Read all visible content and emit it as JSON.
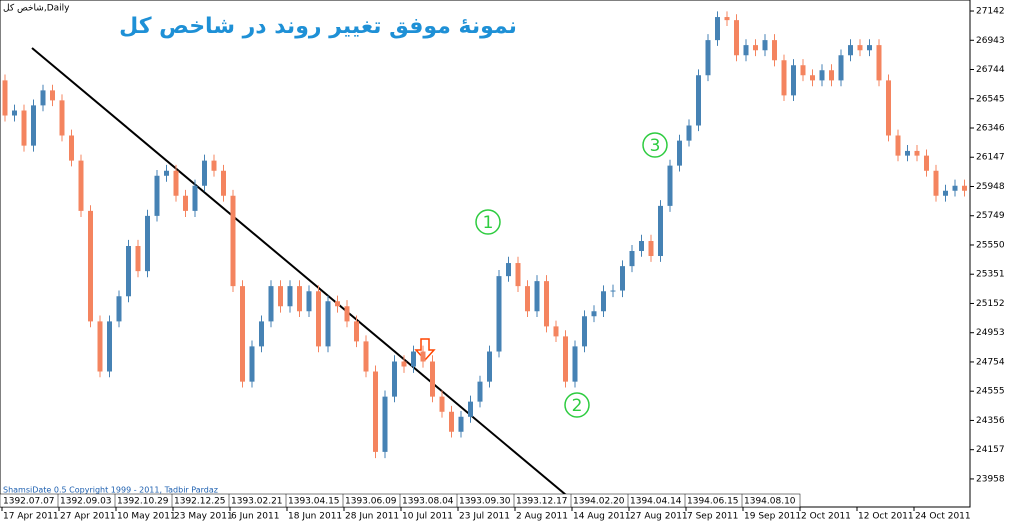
{
  "chart_data": {
    "type": "candlestick",
    "title": "نمونهٔ موفق تغییر روند در شاخص کل",
    "symbol_label": "شاخص کل,Daily",
    "footer": "ShamsiDate 0.5 Copyright 1999 - 2011, Tadbir Pardaz",
    "up_color": "#4682b4",
    "down_color": "#f4845f",
    "ylim": [
      23767,
      27217
    ],
    "yticks": [
      27142,
      26943,
      26744,
      26545,
      26346,
      26147,
      25948,
      25749,
      25550,
      25351,
      25152,
      24953,
      24754,
      24555,
      24356,
      24157,
      23958
    ],
    "categories": [
      "17 Apr 2011",
      null,
      null,
      null,
      null,
      null,
      "27 Apr 2011",
      null,
      null,
      null,
      null,
      null,
      "10 May 2011",
      null,
      null,
      null,
      null,
      null,
      "23 May 2011",
      null,
      null,
      null,
      null,
      null,
      "6 Jun 2011",
      null,
      null,
      null,
      null,
      null,
      "18 Jun 2011",
      null,
      null,
      null,
      null,
      null,
      "28 Jun 2011",
      null,
      null,
      null,
      null,
      null,
      "10 Jul 2011",
      null,
      null,
      null,
      null,
      null,
      "23 Jul 2011",
      null,
      null,
      null,
      null,
      null,
      "2 Aug 2011",
      null,
      null,
      null,
      null,
      null,
      "14 Aug 2011",
      null,
      null,
      null,
      null,
      null,
      "27 Aug 2011",
      null,
      null,
      null,
      null,
      null,
      "7 Sep 2011",
      null,
      null,
      null,
      null,
      null,
      "19 Sep 2011",
      null,
      null,
      null,
      null,
      null,
      "2 Oct 2011",
      null,
      null,
      null,
      null,
      null,
      "12 Oct 2011",
      null,
      null,
      null,
      null,
      null,
      "24 Oct 2011",
      null,
      null,
      null,
      null,
      null
    ],
    "shamsi_dates": [
      "1392.07.07",
      "1392.09.03",
      "1392.10.29",
      "1392.12.25",
      "1393.02.21",
      "1393.04.15",
      "1393.06.09",
      "1393.08.04",
      "1393.09.30",
      "1393.12.17",
      "1394.02.20",
      "1394.04.14",
      "1394.06.15",
      "1394.08.10"
    ],
    "open": [
      26670,
      26431,
      26465,
      26226,
      26500,
      26602,
      26534,
      26295,
      26124,
      25782,
      25030,
      24689,
      25030,
      25201,
      25543,
      25372,
      25748,
      26021,
      26055,
      25885,
      25782,
      25953,
      26124,
      26055,
      25885,
      25270,
      24620,
      24860,
      25030,
      25270,
      25133,
      25270,
      25099,
      25235,
      24860,
      25167,
      25133,
      25030,
      24894,
      24689,
      24142,
      24518,
      24757,
      24723,
      24825,
      24757,
      24518,
      24415,
      24279,
      24381,
      24484,
      24620,
      24825,
      25338,
      25427,
      25270,
      25099,
      25304,
      24996,
      24928,
      24620,
      24860,
      25065,
      25099,
      25235,
      25240,
      25406,
      25509,
      25577,
      25475,
      25816,
      26090,
      26260,
      26363,
      26705,
      26944,
      27101,
      27080,
      26841,
      26910,
      26875,
      26944,
      26807,
      26568,
      26773,
      26705,
      26670,
      26739,
      26670,
      26841,
      26910,
      26875,
      26910,
      26670,
      26295,
      26158,
      26190,
      26158,
      26055,
      25885,
      25919,
      25953
    ],
    "high": [
      26710,
      26505,
      26505,
      26540,
      26640,
      26640,
      26575,
      26335,
      26165,
      25820,
      25070,
      25070,
      25240,
      25585,
      25585,
      25790,
      26060,
      26095,
      26095,
      25925,
      25995,
      26165,
      26165,
      26095,
      25925,
      25310,
      24900,
      25070,
      25310,
      25310,
      25310,
      25310,
      25275,
      25275,
      25205,
      25205,
      25175,
      25070,
      24935,
      24730,
      24560,
      24800,
      24800,
      24865,
      24865,
      24800,
      24560,
      24455,
      24420,
      24525,
      24660,
      24865,
      25380,
      25470,
      25470,
      25310,
      25345,
      25345,
      25035,
      24970,
      24900,
      25105,
      25140,
      25275,
      25280,
      25445,
      25550,
      25620,
      25620,
      25855,
      26130,
      26300,
      26405,
      26745,
      26985,
      27140,
      27140,
      27120,
      26950,
      26950,
      26985,
      26985,
      26845,
      26815,
      26815,
      26745,
      26780,
      26780,
      26880,
      26950,
      26950,
      26950,
      26950,
      26710,
      26335,
      26230,
      26230,
      26200,
      26095,
      25960,
      25995,
      25995
    ],
    "low": [
      26390,
      26390,
      26185,
      26185,
      26460,
      26495,
      26255,
      26085,
      25740,
      24990,
      24650,
      24650,
      24990,
      25160,
      25330,
      25330,
      25710,
      25980,
      25845,
      25740,
      25740,
      25915,
      26015,
      25845,
      25230,
      24580,
      24580,
      24820,
      24990,
      25090,
      25090,
      25060,
      25060,
      24820,
      24820,
      25090,
      24990,
      24855,
      24650,
      24100,
      24100,
      24480,
      24680,
      24680,
      24715,
      24480,
      24375,
      24240,
      24240,
      24340,
      24445,
      24580,
      24785,
      25300,
      25230,
      25060,
      25060,
      24955,
      24890,
      24580,
      24580,
      24820,
      25025,
      25060,
      25195,
      25195,
      25365,
      25470,
      25435,
      25435,
      25775,
      26050,
      26220,
      26325,
      26665,
      26905,
      27040,
      26800,
      26800,
      26835,
      26835,
      26765,
      26530,
      26530,
      26665,
      26630,
      26630,
      26630,
      26630,
      26800,
      26835,
      26835,
      26630,
      26255,
      26120,
      26120,
      26120,
      26015,
      25845,
      25845,
      25880,
      25880
    ],
    "close": [
      26431,
      26465,
      26226,
      26500,
      26602,
      26534,
      26295,
      26124,
      25782,
      25030,
      24689,
      25030,
      25201,
      25543,
      25372,
      25748,
      26021,
      26055,
      25885,
      25782,
      25953,
      26124,
      26055,
      25885,
      25270,
      24620,
      24860,
      25030,
      25270,
      25133,
      25270,
      25099,
      25235,
      24860,
      25167,
      25133,
      25030,
      24894,
      24689,
      24142,
      24518,
      24757,
      24723,
      24825,
      24757,
      24518,
      24415,
      24279,
      24381,
      24484,
      24620,
      24825,
      25338,
      25427,
      25270,
      25099,
      25304,
      24996,
      24928,
      24620,
      24860,
      25065,
      25099,
      25235,
      25240,
      25406,
      25509,
      25577,
      25475,
      25816,
      26090,
      26260,
      26363,
      26705,
      26944,
      27101,
      27080,
      26841,
      26910,
      26875,
      26944,
      26807,
      26568,
      26773,
      26705,
      26670,
      26739,
      26670,
      26841,
      26910,
      26875,
      26910,
      26670,
      26295,
      26158,
      26190,
      26158,
      26055,
      25885,
      25919,
      25953,
      25919
    ],
    "annotations": [
      {
        "text": "1"
      },
      {
        "text": "2"
      },
      {
        "text": "3"
      }
    ]
  }
}
